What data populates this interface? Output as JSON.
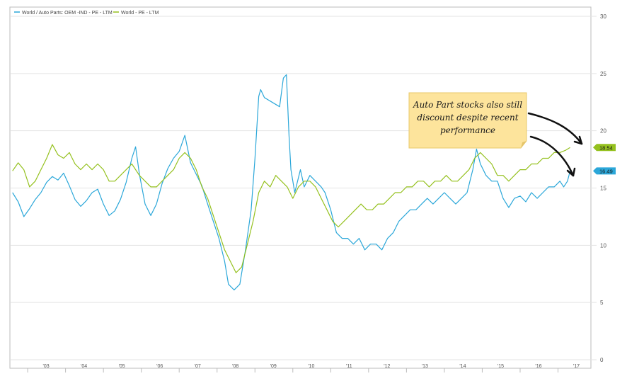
{
  "chart_data": {
    "type": "line",
    "title": "",
    "xlabel": "",
    "ylabel": "",
    "ylim": [
      0,
      30
    ],
    "y_axis_side": "right",
    "y_ticks": [
      "0",
      "5",
      "10",
      "15",
      "20",
      "25",
      "30"
    ],
    "x_ticks": [
      "'03",
      "'04",
      "'05",
      "'06",
      "'07",
      "'08",
      "'09",
      "'10",
      "'11",
      "'12",
      "'13",
      "'14",
      "'15",
      "'16",
      "'17"
    ],
    "x_domain": [
      2002.55,
      2017.85
    ],
    "grid": "horizontal",
    "legend_position": "top-left",
    "series": [
      {
        "name": "World / Auto Parts: OEM -IND - PE - LTM",
        "color": "#2ba7d9",
        "last_label": "16.49",
        "points": [
          [
            2002.6,
            14.6
          ],
          [
            2002.75,
            13.8
          ],
          [
            2002.9,
            12.5
          ],
          [
            2003.05,
            13.2
          ],
          [
            2003.2,
            14.0
          ],
          [
            2003.35,
            14.6
          ],
          [
            2003.5,
            15.5
          ],
          [
            2003.65,
            16.0
          ],
          [
            2003.8,
            15.7
          ],
          [
            2003.95,
            16.3
          ],
          [
            2004.1,
            15.2
          ],
          [
            2004.25,
            14.0
          ],
          [
            2004.4,
            13.4
          ],
          [
            2004.55,
            13.9
          ],
          [
            2004.7,
            14.6
          ],
          [
            2004.85,
            14.9
          ],
          [
            2005.0,
            13.6
          ],
          [
            2005.15,
            12.6
          ],
          [
            2005.3,
            13.0
          ],
          [
            2005.45,
            14.0
          ],
          [
            2005.6,
            15.5
          ],
          [
            2005.75,
            17.6
          ],
          [
            2005.85,
            18.6
          ],
          [
            2005.95,
            16.2
          ],
          [
            2006.1,
            13.6
          ],
          [
            2006.25,
            12.6
          ],
          [
            2006.4,
            13.6
          ],
          [
            2006.55,
            15.4
          ],
          [
            2006.7,
            16.7
          ],
          [
            2006.85,
            17.6
          ],
          [
            2007.0,
            18.2
          ],
          [
            2007.15,
            19.6
          ],
          [
            2007.3,
            17.2
          ],
          [
            2007.45,
            16.2
          ],
          [
            2007.6,
            15.2
          ],
          [
            2007.75,
            13.6
          ],
          [
            2007.9,
            12.1
          ],
          [
            2008.05,
            10.6
          ],
          [
            2008.2,
            8.6
          ],
          [
            2008.3,
            6.6
          ],
          [
            2008.45,
            6.1
          ],
          [
            2008.6,
            6.6
          ],
          [
            2008.75,
            9.6
          ],
          [
            2008.9,
            13.1
          ],
          [
            2009.0,
            17.6
          ],
          [
            2009.1,
            23.0
          ],
          [
            2009.15,
            23.6
          ],
          [
            2009.25,
            22.9
          ],
          [
            2009.65,
            22.1
          ],
          [
            2009.75,
            24.6
          ],
          [
            2009.83,
            24.9
          ],
          [
            2009.9,
            19.6
          ],
          [
            2009.95,
            16.6
          ],
          [
            2010.05,
            14.6
          ],
          [
            2010.2,
            16.6
          ],
          [
            2010.3,
            15.1
          ],
          [
            2010.45,
            16.1
          ],
          [
            2010.6,
            15.6
          ],
          [
            2010.75,
            15.1
          ],
          [
            2010.85,
            14.6
          ],
          [
            2011.0,
            13.1
          ],
          [
            2011.15,
            11.1
          ],
          [
            2011.3,
            10.6
          ],
          [
            2011.45,
            10.6
          ],
          [
            2011.6,
            10.1
          ],
          [
            2011.75,
            10.6
          ],
          [
            2011.9,
            9.6
          ],
          [
            2012.05,
            10.1
          ],
          [
            2012.2,
            10.1
          ],
          [
            2012.35,
            9.6
          ],
          [
            2012.5,
            10.6
          ],
          [
            2012.65,
            11.1
          ],
          [
            2012.8,
            12.1
          ],
          [
            2012.95,
            12.6
          ],
          [
            2013.1,
            13.1
          ],
          [
            2013.25,
            13.1
          ],
          [
            2013.4,
            13.6
          ],
          [
            2013.55,
            14.1
          ],
          [
            2013.7,
            13.6
          ],
          [
            2013.85,
            14.1
          ],
          [
            2014.0,
            14.6
          ],
          [
            2014.15,
            14.1
          ],
          [
            2014.3,
            13.6
          ],
          [
            2014.45,
            14.1
          ],
          [
            2014.6,
            14.6
          ],
          [
            2014.75,
            16.6
          ],
          [
            2014.85,
            18.4
          ],
          [
            2014.95,
            17.1
          ],
          [
            2015.1,
            16.1
          ],
          [
            2015.25,
            15.6
          ],
          [
            2015.4,
            15.6
          ],
          [
            2015.55,
            14.1
          ],
          [
            2015.7,
            13.3
          ],
          [
            2015.85,
            14.1
          ],
          [
            2016.0,
            14.3
          ],
          [
            2016.15,
            13.8
          ],
          [
            2016.3,
            14.6
          ],
          [
            2016.45,
            14.1
          ],
          [
            2016.6,
            14.6
          ],
          [
            2016.75,
            15.1
          ],
          [
            2016.9,
            15.1
          ],
          [
            2017.05,
            15.6
          ],
          [
            2017.15,
            15.1
          ],
          [
            2017.25,
            15.6
          ],
          [
            2017.32,
            16.49
          ]
        ]
      },
      {
        "name": "World - PE - LTM",
        "color": "#95c11f",
        "last_label": "18.54",
        "points": [
          [
            2002.6,
            16.5
          ],
          [
            2002.75,
            17.2
          ],
          [
            2002.9,
            16.6
          ],
          [
            2003.05,
            15.1
          ],
          [
            2003.2,
            15.6
          ],
          [
            2003.35,
            16.6
          ],
          [
            2003.5,
            17.6
          ],
          [
            2003.65,
            18.8
          ],
          [
            2003.8,
            17.9
          ],
          [
            2003.95,
            17.6
          ],
          [
            2004.1,
            18.1
          ],
          [
            2004.25,
            17.1
          ],
          [
            2004.4,
            16.6
          ],
          [
            2004.55,
            17.1
          ],
          [
            2004.7,
            16.6
          ],
          [
            2004.85,
            17.1
          ],
          [
            2005.0,
            16.6
          ],
          [
            2005.15,
            15.6
          ],
          [
            2005.3,
            15.6
          ],
          [
            2005.45,
            16.1
          ],
          [
            2005.6,
            16.6
          ],
          [
            2005.75,
            17.1
          ],
          [
            2005.95,
            16.1
          ],
          [
            2006.1,
            15.6
          ],
          [
            2006.25,
            15.1
          ],
          [
            2006.4,
            15.1
          ],
          [
            2006.55,
            15.6
          ],
          [
            2006.7,
            16.1
          ],
          [
            2006.85,
            16.6
          ],
          [
            2007.0,
            17.6
          ],
          [
            2007.15,
            18.1
          ],
          [
            2007.3,
            17.6
          ],
          [
            2007.45,
            16.6
          ],
          [
            2007.6,
            15.1
          ],
          [
            2007.75,
            14.1
          ],
          [
            2007.9,
            12.6
          ],
          [
            2008.05,
            11.1
          ],
          [
            2008.2,
            9.6
          ],
          [
            2008.35,
            8.6
          ],
          [
            2008.5,
            7.6
          ],
          [
            2008.65,
            8.1
          ],
          [
            2008.8,
            10.1
          ],
          [
            2008.95,
            12.1
          ],
          [
            2009.1,
            14.6
          ],
          [
            2009.25,
            15.6
          ],
          [
            2009.4,
            15.1
          ],
          [
            2009.55,
            16.1
          ],
          [
            2009.7,
            15.6
          ],
          [
            2009.85,
            15.1
          ],
          [
            2010.0,
            14.1
          ],
          [
            2010.15,
            15.1
          ],
          [
            2010.3,
            15.6
          ],
          [
            2010.45,
            15.6
          ],
          [
            2010.6,
            15.1
          ],
          [
            2010.75,
            14.1
          ],
          [
            2010.9,
            13.1
          ],
          [
            2011.05,
            12.1
          ],
          [
            2011.2,
            11.6
          ],
          [
            2011.35,
            12.1
          ],
          [
            2011.5,
            12.6
          ],
          [
            2011.65,
            13.1
          ],
          [
            2011.8,
            13.6
          ],
          [
            2011.95,
            13.1
          ],
          [
            2012.1,
            13.1
          ],
          [
            2012.25,
            13.6
          ],
          [
            2012.4,
            13.6
          ],
          [
            2012.55,
            14.1
          ],
          [
            2012.7,
            14.6
          ],
          [
            2012.85,
            14.6
          ],
          [
            2013.0,
            15.1
          ],
          [
            2013.15,
            15.1
          ],
          [
            2013.3,
            15.6
          ],
          [
            2013.45,
            15.6
          ],
          [
            2013.6,
            15.1
          ],
          [
            2013.75,
            15.6
          ],
          [
            2013.9,
            15.6
          ],
          [
            2014.05,
            16.1
          ],
          [
            2014.2,
            15.6
          ],
          [
            2014.35,
            15.6
          ],
          [
            2014.5,
            16.1
          ],
          [
            2014.65,
            16.6
          ],
          [
            2014.8,
            17.6
          ],
          [
            2014.95,
            18.1
          ],
          [
            2015.1,
            17.6
          ],
          [
            2015.25,
            17.1
          ],
          [
            2015.4,
            16.1
          ],
          [
            2015.55,
            16.1
          ],
          [
            2015.7,
            15.6
          ],
          [
            2015.85,
            16.1
          ],
          [
            2016.0,
            16.6
          ],
          [
            2016.15,
            16.6
          ],
          [
            2016.3,
            17.1
          ],
          [
            2016.45,
            17.1
          ],
          [
            2016.6,
            17.6
          ],
          [
            2016.75,
            17.6
          ],
          [
            2016.9,
            18.1
          ],
          [
            2017.05,
            18.1
          ],
          [
            2017.2,
            18.3
          ],
          [
            2017.32,
            18.54
          ]
        ]
      }
    ],
    "annotation": {
      "text_lines": [
        "Auto Part stocks also still",
        "discount despite recent",
        "performance"
      ],
      "background": "#fde49c"
    }
  }
}
